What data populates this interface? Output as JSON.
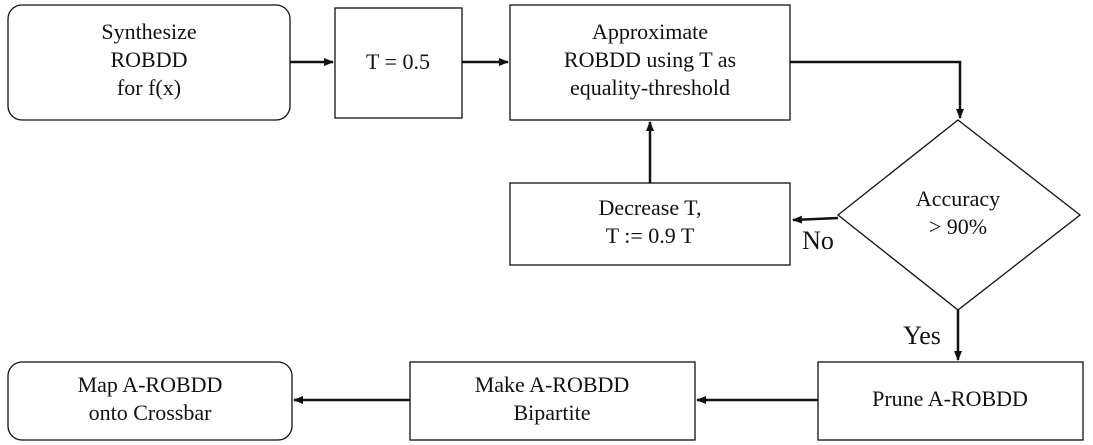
{
  "nodes": [
    {
      "lines": [
        "Synthesize",
        "ROBDD",
        "for f(x)"
      ]
    },
    {
      "lines": [
        "T = 0.5"
      ]
    },
    {
      "lines": [
        "Approximate",
        "ROBDD using T as",
        "equality-threshold"
      ]
    },
    {
      "lines": [
        "Accuracy",
        "> 90%"
      ]
    },
    {
      "lines": [
        "Decrease T,",
        "T :=  0.9 T"
      ]
    },
    {
      "lines": [
        "Prune A-ROBDD"
      ]
    },
    {
      "lines": [
        "Make A-ROBDD",
        "Bipartite"
      ]
    },
    {
      "lines": [
        "Map A-ROBDD",
        "onto Crossbar"
      ]
    }
  ],
  "edge_labels": [
    "No",
    "Yes"
  ]
}
